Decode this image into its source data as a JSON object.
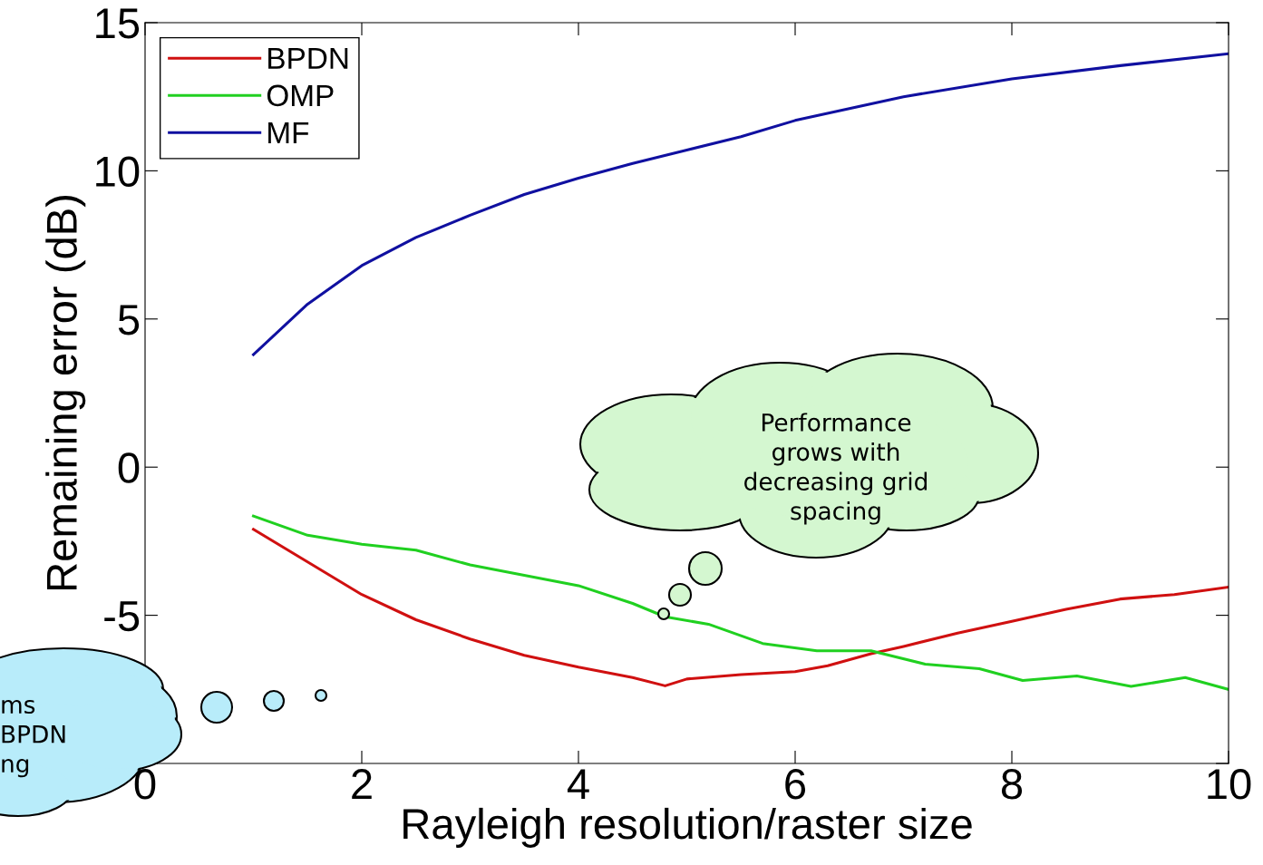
{
  "chart_data": {
    "type": "line",
    "xlabel": "Rayleigh resolution/raster size",
    "ylabel": "Remaining error (dB)",
    "xlim": [
      0,
      10
    ],
    "xticks": [
      0,
      2,
      4,
      6,
      8,
      10
    ],
    "ylim": [
      -10,
      15
    ],
    "yticks": [
      {
        "value": -10,
        "label": null
      },
      -5,
      0,
      5,
      10,
      15
    ],
    "grid": false,
    "legend": "top left",
    "line_style": "solid",
    "marker": "none",
    "series": [
      {
        "name": "BPDN",
        "color": "#d01010",
        "x": [
          1,
          1.5,
          2,
          2.5,
          3,
          3.5,
          4,
          4.5,
          4.8,
          5,
          5.5,
          6,
          6.3,
          6.7,
          7,
          7.5,
          8,
          8.5,
          9,
          9.5,
          10
        ],
        "values": [
          -2.1,
          -3.2,
          -4.3,
          -5.15,
          -5.8,
          -6.35,
          -6.75,
          -7.1,
          -7.38,
          -7.15,
          -7.0,
          -6.9,
          -6.7,
          -6.3,
          -6.05,
          -5.6,
          -5.2,
          -4.8,
          -4.45,
          -4.3,
          -4.05
        ]
      },
      {
        "name": "OMP",
        "color": "#20d020",
        "x": [
          1,
          1.5,
          2,
          2.5,
          3,
          3.5,
          4,
          4.5,
          4.8,
          5.2,
          5.7,
          6.2,
          6.7,
          7.2,
          7.7,
          8.1,
          8.6,
          9.1,
          9.6,
          10
        ],
        "values": [
          -1.65,
          -2.3,
          -2.6,
          -2.8,
          -3.3,
          -3.65,
          -4.0,
          -4.6,
          -5.05,
          -5.3,
          -5.95,
          -6.2,
          -6.2,
          -6.65,
          -6.8,
          -7.2,
          -7.05,
          -7.4,
          -7.1,
          -7.5
        ]
      },
      {
        "name": "MF",
        "color": "#1010a0",
        "x": [
          1,
          1.5,
          2,
          2.5,
          3,
          3.5,
          4,
          4.5,
          5,
          5.5,
          6,
          7,
          8,
          9,
          10
        ],
        "values": [
          3.8,
          5.5,
          6.8,
          7.75,
          8.5,
          9.2,
          9.75,
          10.25,
          10.7,
          11.15,
          11.7,
          12.5,
          13.1,
          13.55,
          13.95
        ]
      }
    ],
    "annotations": [
      "Performance\ngrows with\ndecreasing grid\nspacing",
      "ms\nBPDN\nng"
    ]
  }
}
